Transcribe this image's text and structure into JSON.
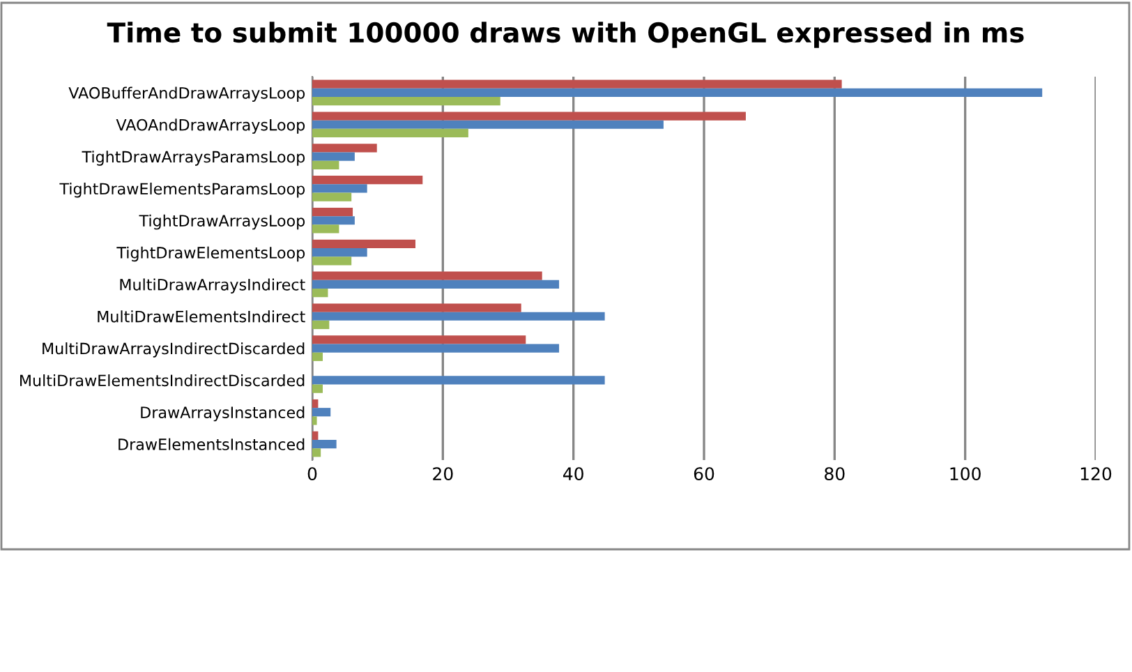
{
  "chart_data": {
    "type": "bar",
    "orientation": "horizontal",
    "title": "Time to submit 100000 draws with OpenGL expressed in ms",
    "categories": [
      "VAOBufferAndDrawArraysLoop",
      "VAOAndDrawArraysLoop",
      "TightDrawArraysParamsLoop",
      "TightDrawElementsParamsLoop",
      "TightDrawArraysLoop",
      "TightDrawElementsLoop",
      "MultiDrawArraysIndirect",
      "MultiDrawElementsIndirect",
      "MultiDrawArraysIndirectDiscarded",
      "MultiDrawElementsIndirectDiscarded",
      "DrawArraysInstanced",
      "DrawElementsInstanced"
    ],
    "series": [
      {
        "color": "#c0504d",
        "values": [
          81.1,
          66.4,
          9.9,
          16.9,
          6.2,
          15.8,
          35.2,
          32.0,
          32.7,
          null,
          0.9,
          0.9
        ]
      },
      {
        "color": "#4f81bd",
        "values": [
          111.8,
          53.8,
          6.5,
          8.4,
          6.5,
          8.4,
          37.8,
          44.8,
          37.8,
          44.8,
          2.8,
          3.7
        ]
      },
      {
        "color": "#9bbb59",
        "values": [
          28.8,
          23.9,
          4.1,
          6.0,
          4.1,
          6.0,
          2.4,
          2.6,
          1.6,
          1.6,
          0.7,
          1.3
        ]
      }
    ],
    "xlim": [
      0,
      120
    ],
    "xticks": [
      0,
      20,
      40,
      60,
      80,
      100,
      120
    ],
    "grid": "x"
  }
}
